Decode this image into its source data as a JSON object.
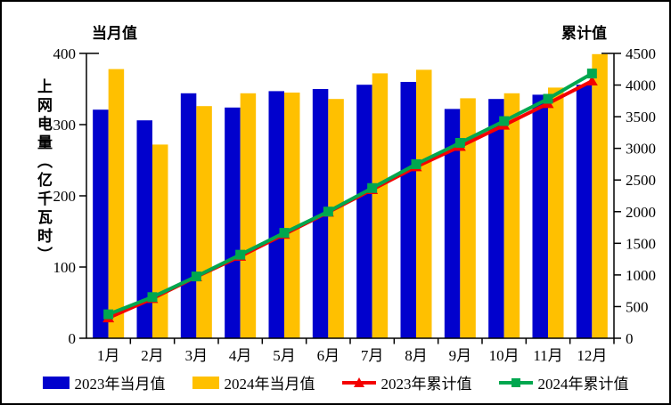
{
  "chart_data": {
    "type": "combo_bar_line",
    "title_left": "当月值",
    "title_right": "累计值",
    "y_axis_label": "上网电量（亿千瓦时）",
    "categories": [
      "1月",
      "2月",
      "3月",
      "4月",
      "5月",
      "6月",
      "7月",
      "8月",
      "9月",
      "10月",
      "11月",
      "12月"
    ],
    "left_axis": {
      "min": 0,
      "max": 400,
      "ticks": [
        0,
        100,
        200,
        300,
        400
      ]
    },
    "right_axis": {
      "min": 0,
      "max": 4500,
      "ticks": [
        0,
        500,
        1000,
        1500,
        2000,
        2500,
        3000,
        3500,
        4000,
        4500
      ]
    },
    "grid": false,
    "legend_position": "bottom",
    "series": [
      {
        "name": "2023年当月值",
        "type": "bar",
        "axis": "left",
        "color": "#0101CD",
        "values": [
          321,
          306,
          344,
          324,
          347,
          350,
          356,
          360,
          322,
          336,
          342,
          356
        ]
      },
      {
        "name": "2024年当月值",
        "type": "bar",
        "axis": "left",
        "color": "#FFC000",
        "values": [
          378,
          272,
          326,
          344,
          345,
          336,
          372,
          377,
          337,
          344,
          352,
          399
        ]
      },
      {
        "name": "2023年累计值",
        "type": "line",
        "axis": "right",
        "color": "#F40000",
        "marker": "triangle",
        "values": [
          321,
          627,
          971,
          1295,
          1642,
          1992,
          2348,
          2708,
          3030,
          3366,
          3708,
          4064
        ]
      },
      {
        "name": "2024年累计值",
        "type": "line",
        "axis": "right",
        "color": "#00A74F",
        "marker": "square",
        "values": [
          378,
          650,
          976,
          1320,
          1665,
          2001,
          2373,
          2750,
          3087,
          3431,
          3783,
          4182
        ]
      }
    ]
  },
  "colors": {
    "axis": "#000000",
    "text": "#000000",
    "background": "#FFFFFF"
  }
}
